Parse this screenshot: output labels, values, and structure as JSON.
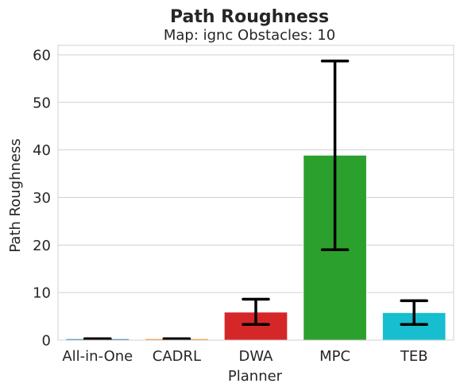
{
  "chart_data": {
    "type": "bar",
    "title": "Path Roughness",
    "subtitle": "Map: ignc Obstacles: 10",
    "xlabel": "Planner",
    "ylabel": "Path Roughness",
    "categories": [
      "All-in-One",
      "CADRL",
      "DWA",
      "MPC",
      "TEB"
    ],
    "values": [
      0.3,
      0.3,
      5.9,
      38.9,
      5.8
    ],
    "error_low": [
      0.3,
      0.3,
      3.3,
      19.0,
      3.3
    ],
    "error_high": [
      0.3,
      0.3,
      8.6,
      58.7,
      8.3
    ],
    "colors": [
      "#1f77b4",
      "#ff7f0e",
      "#d62728",
      "#2ca02c",
      "#17becf"
    ],
    "ylim": [
      0,
      62
    ],
    "yticks": [
      0,
      10,
      20,
      30,
      40,
      50,
      60
    ],
    "grid": true
  }
}
